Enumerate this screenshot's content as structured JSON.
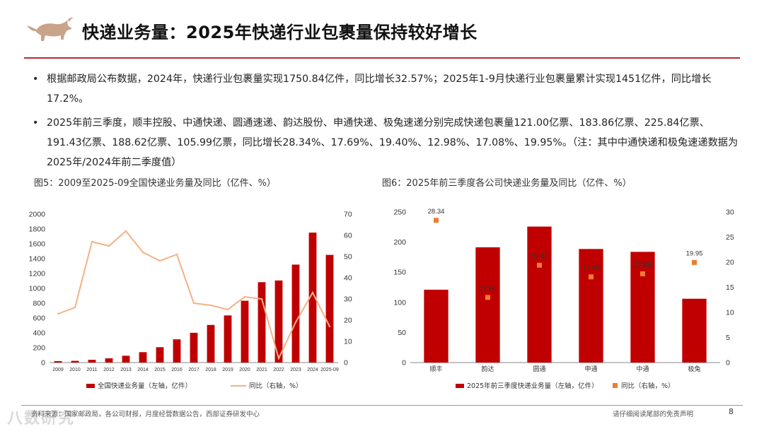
{
  "header": {
    "title": "快递业务量：2025年快递行业包裹量保持较好增长",
    "accent_color": "#c0262c",
    "logo": "bull-logo-icon"
  },
  "bullets": [
    "根据邮政局公布数据，2024年，快递行业包裹量实现1750.84亿件，同比增长32.57%；2025年1-9月快递行业包裹量累计实现1451亿件，同比增长17.2%。",
    "2025年前三季度，顺丰控股、中通快递、圆通速递、韵达股份、申通快递、极兔速递分别完成快递包裹量121.00亿票、183.86亿票、225.84亿票、191.43亿票、188.62亿票、105.99亿票，同比增长28.34%、17.69%、19.40%、12.98%、17.08%、19.95%。（注：其中中通快递和极兔速递数据为2025年/2024年前二季度值）"
  ],
  "figures": {
    "fig5_caption": "图5：2009至2025-09全国快递业务量及同比（亿件、%）",
    "fig6_caption": "图6：2025年前三季度各公司快递业务量及同比（亿件、%）"
  },
  "chart_data": [
    {
      "type": "bar+line",
      "categories": [
        "2009",
        "2010",
        "2011",
        "2012",
        "2013",
        "2014",
        "2015",
        "2016",
        "2017",
        "2018",
        "2019",
        "2020",
        "2021",
        "2022",
        "2023",
        "2024",
        "2025-09"
      ],
      "series": [
        {
          "name": "全国快递业务量（左轴，亿件）",
          "axis": "left",
          "kind": "bar",
          "color": "#c00000",
          "values": [
            19,
            23,
            37,
            57,
            92,
            140,
            207,
            313,
            401,
            507,
            635,
            833,
            1083,
            1106,
            1320,
            1751,
            1451
          ]
        },
        {
          "name": "同比（右轴，%）",
          "axis": "right",
          "kind": "line",
          "color": "#f4b183",
          "values": [
            23,
            26,
            57,
            55,
            62,
            52,
            48,
            51,
            28,
            27,
            25,
            31,
            30,
            2,
            19,
            33,
            17
          ]
        }
      ],
      "y_left": {
        "min": 0,
        "max": 2000,
        "ticks": [
          0,
          200,
          400,
          600,
          800,
          1000,
          1200,
          1400,
          1600,
          1800,
          2000
        ]
      },
      "y_right": {
        "min": 0,
        "max": 70,
        "ticks": [
          0,
          10,
          20,
          30,
          40,
          50,
          60,
          70
        ]
      },
      "legend_position": "bottom"
    },
    {
      "type": "bar+scatter",
      "categories": [
        "顺丰",
        "韵达",
        "圆通",
        "申通",
        "中通",
        "极兔"
      ],
      "series": [
        {
          "name": "2025年前三季度快递业务量（左轴，亿件）",
          "axis": "left",
          "kind": "bar",
          "color": "#c00000",
          "values": [
            121.0,
            191.43,
            225.84,
            188.62,
            183.86,
            105.99
          ]
        },
        {
          "name": "同比（右轴，%）",
          "axis": "right",
          "kind": "marker",
          "color": "#ed7d31",
          "values": [
            28.34,
            12.98,
            19.4,
            17.08,
            17.69,
            19.95
          ],
          "labels": [
            "28.34",
            "12.98",
            "19.40",
            "17.08",
            "17.69",
            "19.95"
          ]
        }
      ],
      "y_left": {
        "min": 0,
        "max": 250,
        "ticks": [
          0,
          50,
          100,
          150,
          200,
          250
        ]
      },
      "y_right": {
        "min": 0,
        "max": 30,
        "ticks": [
          0,
          5,
          10,
          15,
          20,
          25,
          30
        ]
      },
      "legend_position": "bottom"
    }
  ],
  "footer": {
    "source": "资料来源：国家邮政局，各公司财报，月度经营数据公告，西部证券研发中心",
    "disclaimer": "请仔细阅读尾部的免责声明",
    "page": "8",
    "watermark": "八数研究"
  }
}
